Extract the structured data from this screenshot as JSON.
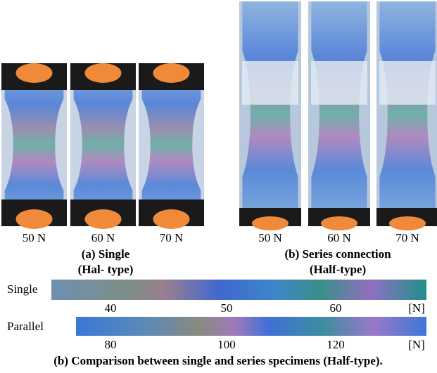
{
  "panels": [
    {
      "labels": [
        "50 N",
        "60 N",
        "70 N"
      ],
      "caption": [
        "(a) Single",
        "(Hal- type)"
      ]
    },
    {
      "labels": [
        "50 N",
        "60 N",
        "70 N"
      ],
      "caption": [
        "(b) Series connection",
        "(Half-type)"
      ]
    }
  ],
  "colorbars": [
    {
      "name": "Single",
      "ticks": [
        "40",
        "50",
        "60"
      ],
      "unit": "[N]"
    },
    {
      "name": "Parallel",
      "ticks": [
        "80",
        "100",
        "120"
      ],
      "unit": "[N]"
    }
  ],
  "caption": "(b) Comparison between single and series specimens (Half-type)."
}
